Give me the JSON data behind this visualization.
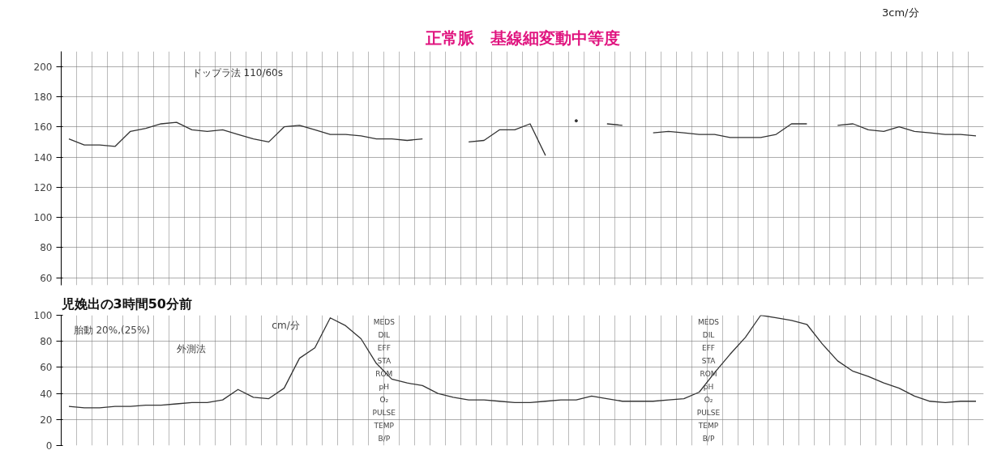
{
  "chart_data": [
    {
      "type": "line",
      "title": "正常脈　基線細変動中等度",
      "categories": [
        null,
        null,
        null,
        null,
        null,
        null,
        null,
        null,
        null,
        null,
        null,
        null,
        null,
        null,
        null,
        null,
        null,
        null,
        null,
        null,
        null,
        null,
        null,
        null,
        null,
        null,
        null,
        null,
        null,
        null,
        null,
        null,
        null,
        null,
        null,
        null,
        null,
        null,
        null,
        null,
        null,
        null,
        null,
        null,
        null,
        null,
        null,
        null,
        null,
        null,
        null,
        null,
        null,
        null,
        null,
        null,
        null,
        null,
        null,
        null
      ],
      "series": [
        {
          "color": "#333333",
          "values": [
            152,
            148,
            148,
            147,
            157,
            159,
            162,
            163,
            158,
            157,
            158,
            155,
            152,
            150,
            160,
            161,
            158,
            155,
            155,
            154,
            152,
            152,
            151,
            152,
            null,
            null,
            150,
            151,
            158,
            158,
            162,
            141,
            null,
            164,
            null,
            162,
            161,
            null,
            156,
            157,
            156,
            155,
            155,
            153,
            153,
            153,
            155,
            162,
            162,
            null,
            161,
            162,
            158,
            157,
            160,
            157,
            156,
            155,
            155,
            154
          ]
        }
      ],
      "ylim": [
        55,
        210
      ],
      "yticks": [
        60,
        80,
        100,
        120,
        140,
        160,
        180,
        200
      ],
      "grid": true,
      "tick_labels": "y",
      "annotations": [
        "3cm/分",
        "ドップラ法 110/60s"
      ]
    },
    {
      "type": "line",
      "categories": [
        null,
        null,
        null,
        null,
        null,
        null,
        null,
        null,
        null,
        null,
        null,
        null,
        null,
        null,
        null,
        null,
        null,
        null,
        null,
        null,
        null,
        null,
        null,
        null,
        null,
        null,
        null,
        null,
        null,
        null,
        null,
        null,
        null,
        null,
        null,
        null,
        null,
        null,
        null,
        null,
        null,
        null,
        null,
        null,
        null,
        null,
        null,
        null,
        null,
        null,
        null,
        null,
        null,
        null,
        null,
        null,
        null,
        null,
        null,
        null
      ],
      "series": [
        {
          "color": "#333333",
          "values": [
            30,
            29,
            29,
            30,
            30,
            31,
            31,
            32,
            33,
            33,
            35,
            43,
            37,
            36,
            44,
            67,
            75,
            98,
            92,
            82,
            63,
            51,
            48,
            46,
            40,
            37,
            35,
            35,
            34,
            33,
            33,
            34,
            35,
            35,
            38,
            36,
            34,
            34,
            34,
            35,
            36,
            41,
            56,
            70,
            83,
            100,
            98,
            96,
            93,
            78,
            65,
            57,
            53,
            48,
            44,
            38,
            34,
            33,
            34,
            34
          ]
        }
      ],
      "ylim": [
        0,
        100
      ],
      "yticks": [
        0,
        20,
        40,
        60,
        80,
        100
      ],
      "grid": true,
      "tick_labels": "y",
      "annotations": [
        "児娩出の3時間50分前",
        "外測法",
        "胎動 20%,(25%)",
        "cm/分",
        "MEDS",
        "DIL",
        "EFF",
        "STA",
        "ROM",
        "pH",
        "O₂",
        "PULSE",
        "TEMP",
        "B/P"
      ]
    }
  ]
}
